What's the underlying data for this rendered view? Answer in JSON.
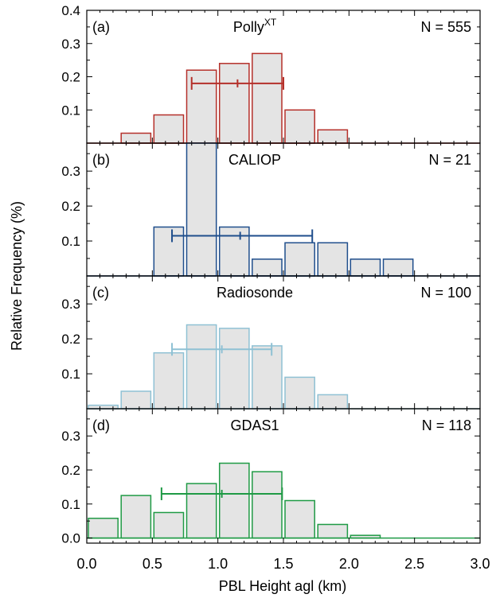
{
  "chart_data": {
    "type": "bar",
    "xlabel": "PBL Height agl (km)",
    "ylabel": "Relative Frequency (%)",
    "xlim": [
      0.0,
      3.0
    ],
    "xticks": [
      "0.0",
      "0.5",
      "1.0",
      "1.5",
      "2.0",
      "2.5",
      "3.0"
    ],
    "bin_width": 0.25,
    "panels": [
      {
        "tag": "(a)",
        "title": "Polly",
        "title_sup": "XT",
        "n_label": "N = 555",
        "color": "#b5302a",
        "ylim": [
          0,
          0.4
        ],
        "yticks": [
          "0.1",
          "0.2",
          "0.3",
          "0.4"
        ],
        "bins": [
          0.0,
          0.25,
          0.5,
          0.75,
          1.0,
          1.25,
          1.5,
          1.75,
          2.0,
          2.25,
          2.5,
          2.75
        ],
        "values": [
          0.0,
          0.03,
          0.085,
          0.22,
          0.24,
          0.27,
          0.1,
          0.04,
          0.0,
          0.0,
          0.0,
          0.0
        ],
        "errorbar": {
          "low": 0.8,
          "mid": 1.15,
          "high": 1.5,
          "y": 0.18
        }
      },
      {
        "tag": "(b)",
        "title": "CALIOP",
        "n_label": "N = 21",
        "color": "#1f4e8c",
        "ylim": [
          0,
          0.38
        ],
        "yticks": [
          "0.1",
          "0.2",
          "0.3"
        ],
        "bins": [
          0.0,
          0.25,
          0.5,
          0.75,
          1.0,
          1.25,
          1.5,
          1.75,
          2.0,
          2.25,
          2.5,
          2.75
        ],
        "values": [
          0.0,
          0.0,
          0.14,
          0.38,
          0.14,
          0.048,
          0.095,
          0.095,
          0.048,
          0.048,
          0.0,
          0.0
        ],
        "errorbar": {
          "low": 0.65,
          "mid": 1.17,
          "high": 1.72,
          "y": 0.115
        }
      },
      {
        "tag": "(c)",
        "title": "Radiosonde",
        "n_label": "N = 100",
        "color": "#8fc1d4",
        "ylim": [
          0,
          0.38
        ],
        "yticks": [
          "0.1",
          "0.2",
          "0.3"
        ],
        "bins": [
          0.0,
          0.25,
          0.5,
          0.75,
          1.0,
          1.25,
          1.5,
          1.75,
          2.0,
          2.25,
          2.5,
          2.75
        ],
        "values": [
          0.01,
          0.05,
          0.16,
          0.24,
          0.23,
          0.18,
          0.09,
          0.04,
          0.0,
          0.0,
          0.0,
          0.0
        ],
        "errorbar": {
          "low": 0.65,
          "mid": 1.03,
          "high": 1.41,
          "y": 0.17
        }
      },
      {
        "tag": "(d)",
        "title": "GDAS1",
        "n_label": "N = 118",
        "color": "#1f9a45",
        "ylim": [
          -0.015,
          0.38
        ],
        "yticks": [
          "0.0",
          "0.1",
          "0.2",
          "0.3"
        ],
        "bins": [
          0.0,
          0.25,
          0.5,
          0.75,
          1.0,
          1.25,
          1.5,
          1.75,
          2.0,
          2.25,
          2.5,
          2.75
        ],
        "values": [
          0.058,
          0.125,
          0.075,
          0.16,
          0.22,
          0.195,
          0.11,
          0.04,
          0.008,
          0.0,
          0.0,
          0.0
        ],
        "errorbar": {
          "low": 0.57,
          "mid": 1.03,
          "high": 1.49,
          "y": 0.13
        }
      }
    ]
  }
}
